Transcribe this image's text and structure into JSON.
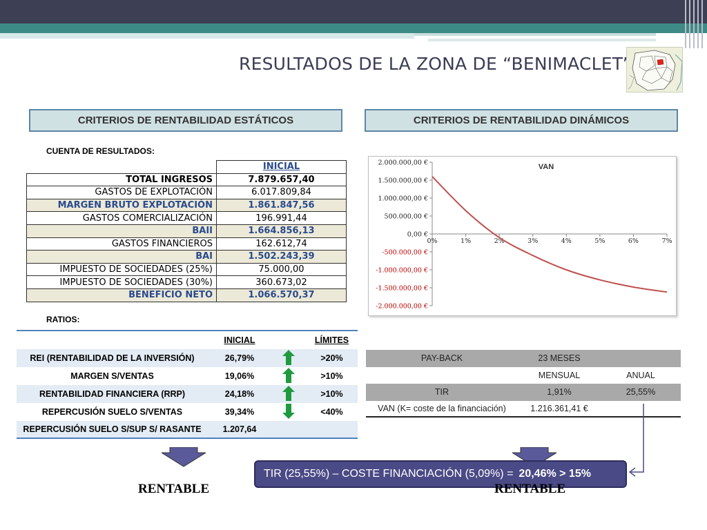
{
  "title": "RESULTADOS DE LA ZONA DE “BENIMACLET”",
  "sections": {
    "static": "CRITERIOS DE RENTABILIDAD ESTÁTICOS",
    "dynamic": "CRITERIOS DE RENTABILIDAD DINÁMICOS"
  },
  "cuenta": {
    "label": "CUENTA DE RESULTADOS:",
    "header": "INICIAL",
    "rows": [
      {
        "label": "TOTAL INGRESOS",
        "value": "7.879.657,40"
      },
      {
        "label": "GASTOS DE EXPLOTACIÓN",
        "value": "6.017.809,84"
      },
      {
        "label": "MARGEN BRUTO EXPLOTACIÓN",
        "value": "1.861.847,56"
      },
      {
        "label": "GASTOS COMERCIALIZACIÓN",
        "value": "196.991,44"
      },
      {
        "label": "BAII",
        "value": "1.664.856,13"
      },
      {
        "label": "GASTOS FINANCIEROS",
        "value": "162.612,74"
      },
      {
        "label": "BAI",
        "value": "1.502.243,39"
      },
      {
        "label": "IMPUESTO DE SOCIEDADES (25%)",
        "value": "75.000,00"
      },
      {
        "label": "IMPUESTO DE SOCIEDADES (30%)",
        "value": "360.673,02"
      },
      {
        "label": "BENEFICIO NETO",
        "value": "1.066.570,37"
      }
    ]
  },
  "ratios": {
    "label": "RATIOS:",
    "header_inicial": "INICIAL",
    "header_limites": "LÍMITES",
    "rows": [
      {
        "label": "REI (RENTABILIDAD DE LA INVERSIÓN)",
        "value": "26,79%",
        "limit": ">20%",
        "arrow": "up"
      },
      {
        "label": "MARGEN S/VENTAS",
        "value": "19,06%",
        "limit": ">10%",
        "arrow": "up"
      },
      {
        "label": "RENTABILIDAD FINANCIERA (RRP)",
        "value": "24,18%",
        "limit": ">10%",
        "arrow": "up"
      },
      {
        "label": "REPERCUSIÓN SUELO S/VENTAS",
        "value": "39,34%",
        "limit": "<40%",
        "arrow": "down"
      },
      {
        "label": "REPERCUSIÓN SUELO S/SUP S/ RASANTE",
        "value": "1.207,64",
        "limit": "",
        "arrow": ""
      }
    ]
  },
  "chart_data": {
    "type": "line",
    "title": "VAN",
    "x": [
      "0%",
      "1%",
      "2%",
      "3%",
      "4%",
      "5%",
      "6%",
      "7%"
    ],
    "series": [
      {
        "values": [
          1600000,
          650000,
          -100000,
          -600000,
          -1000000,
          -1280000,
          -1480000,
          -1620000
        ]
      }
    ],
    "y_ticks": [
      "2.000.000,00 €",
      "1.500.000,00 €",
      "1.000.000,00 €",
      "500.000,00 €",
      "0,00 €",
      "-500.000,00 €",
      "-1.000.000,00 €",
      "-1.500.000,00 €",
      "-2.000.000,00 €"
    ],
    "ylim": [
      -2000000,
      2000000
    ],
    "line_color": "#c0504d"
  },
  "payback": {
    "payback_label": "PAY-BACK",
    "payback_value": "23 MESES",
    "mensual": "MENSUAL",
    "anual": "ANUAL",
    "tir_label": "TIR",
    "tir_mensual": "1,91%",
    "tir_anual": "25,55%",
    "van_label": "VAN (K= coste de la financiación)",
    "van_value": "1.216.361,41 €"
  },
  "callout": {
    "text": "TIR (25,55%) – COSTE FINANCIACIÓN (5,09%) =",
    "result": "20,46%  > 15%"
  },
  "verdicts": {
    "static": "RENTABLE",
    "dynamic": "RENTABLE"
  },
  "colors": {
    "accent_dark": "#3d3f55",
    "accent_teal": "#3e8a86",
    "up_arrow": "#1f9a3e",
    "box_fill": "#d0e1e3"
  }
}
